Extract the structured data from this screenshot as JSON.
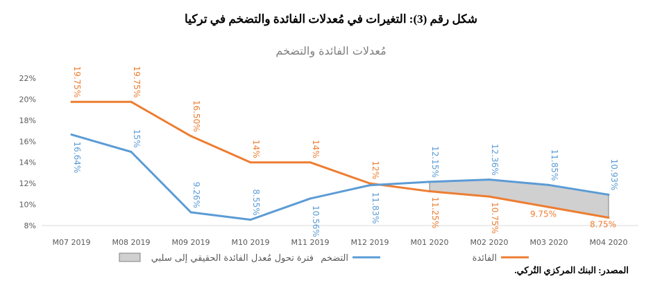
{
  "figure_title": "شكل رقم (3): التغيرات في مُعدلات الفائدة والتضخم في تركيا",
  "source": "المصدر: البنك المركزي التُركي.",
  "colors": {
    "interest": "#ED7D31",
    "inflation": "#5B9BD5",
    "shade": "#D0D0D0",
    "axis": "#D9D9D9"
  },
  "chart_data": {
    "type": "line",
    "title": "مُعدلات الفائدة والتضخم",
    "categories": [
      "M07 2019",
      "M08 2019",
      "M09 2019",
      "M10 2019",
      "M11 2019",
      "M12 2019",
      "M01 2020",
      "M02 2020",
      "M03 2020",
      "M04 2020"
    ],
    "ylim": [
      8,
      22
    ],
    "yticks": [
      8,
      10,
      12,
      14,
      16,
      18,
      20,
      22
    ],
    "ytick_labels": [
      "8%",
      "10%",
      "12%",
      "14%",
      "16%",
      "18%",
      "20%",
      "22%"
    ],
    "series": [
      {
        "name": "الفائدة",
        "key": "interest",
        "values": [
          19.75,
          19.75,
          16.5,
          14,
          14,
          12,
          11.25,
          10.75,
          9.75,
          8.75
        ],
        "labels": [
          "19.75%",
          "19.75%",
          "16.50%",
          "14%",
          "14%",
          "12%",
          "11.25%",
          "10.75%",
          "9.75%",
          "8.75%"
        ]
      },
      {
        "name": "التضخم",
        "key": "inflation",
        "values": [
          16.64,
          15,
          9.26,
          8.55,
          10.56,
          11.83,
          12.15,
          12.36,
          11.85,
          10.93
        ],
        "labels": [
          "16.64%",
          "15%",
          "9.26%",
          "8.55%",
          "10.56%",
          "11.83%",
          "12.15%",
          "12.36%",
          "11.85%",
          "10.93%"
        ]
      }
    ],
    "shaded_region": {
      "name": "فترة تحول مُعدل الفائدة الحقيقي إلى سلبي",
      "from": "M01 2020",
      "to": "M04 2020"
    },
    "legend": [
      "الفائدة",
      "التضخم",
      "فترة تحول مُعدل الفائدة الحقيقي إلى سلبي"
    ],
    "legend_position": "bottom",
    "grid": false
  }
}
